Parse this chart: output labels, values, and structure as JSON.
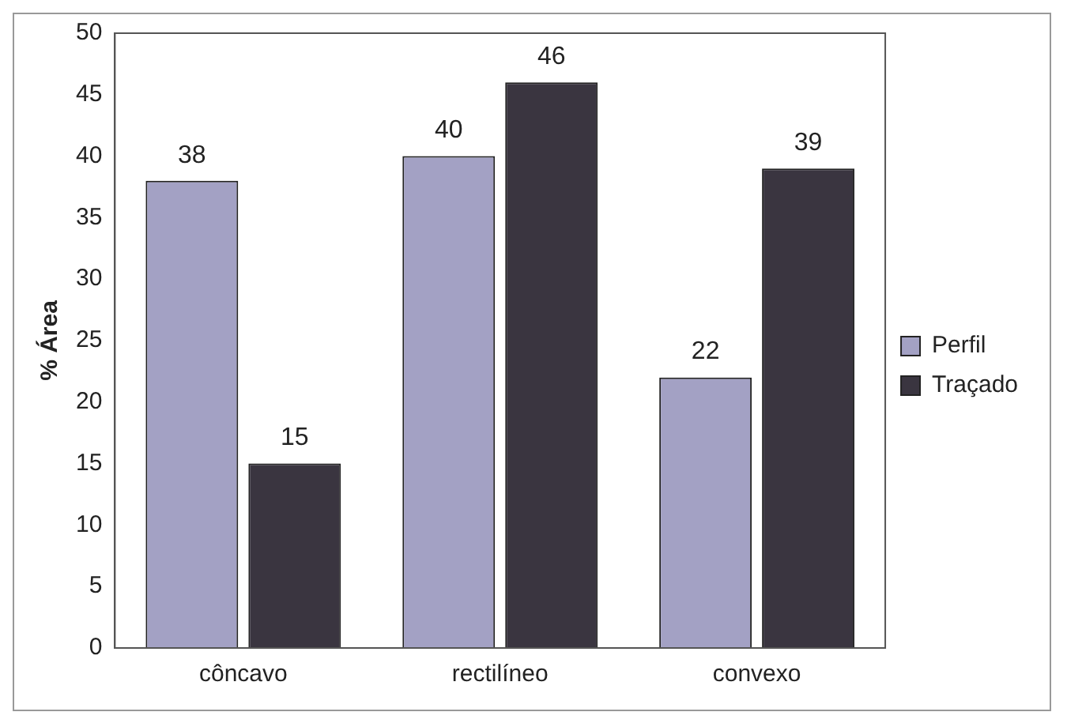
{
  "chart_data": {
    "type": "bar",
    "ylabel": "% Área",
    "categories": [
      "côncavo",
      "rectilíneo",
      "convexo"
    ],
    "series": [
      {
        "name": "Perfil",
        "color": "#a3a1c4",
        "values": [
          38,
          40,
          22
        ]
      },
      {
        "name": "Traçado",
        "color": "#3a3540",
        "values": [
          15,
          46,
          39
        ]
      }
    ],
    "ylim": [
      0,
      50
    ],
    "yticks": [
      0,
      5,
      10,
      15,
      20,
      25,
      30,
      35,
      40,
      45,
      50
    ],
    "grid": false,
    "legend": "right",
    "data_labels": true
  }
}
